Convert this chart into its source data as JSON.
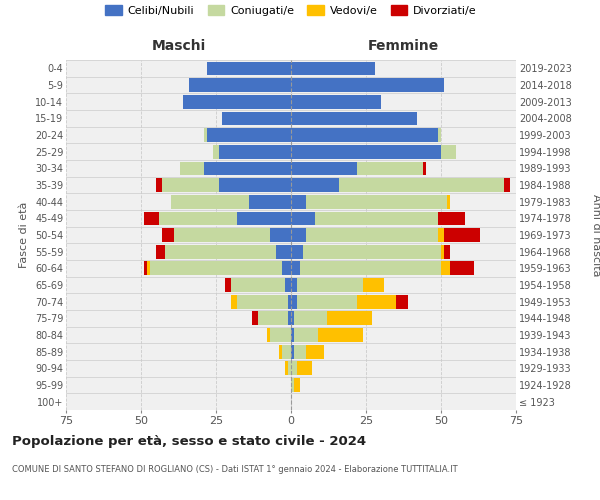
{
  "age_groups": [
    "100+",
    "95-99",
    "90-94",
    "85-89",
    "80-84",
    "75-79",
    "70-74",
    "65-69",
    "60-64",
    "55-59",
    "50-54",
    "45-49",
    "40-44",
    "35-39",
    "30-34",
    "25-29",
    "20-24",
    "15-19",
    "10-14",
    "5-9",
    "0-4"
  ],
  "birth_years": [
    "≤ 1923",
    "1924-1928",
    "1929-1933",
    "1934-1938",
    "1939-1943",
    "1944-1948",
    "1949-1953",
    "1954-1958",
    "1959-1963",
    "1964-1968",
    "1969-1973",
    "1974-1978",
    "1979-1983",
    "1984-1988",
    "1989-1993",
    "1994-1998",
    "1999-2003",
    "2004-2008",
    "2009-2013",
    "2014-2018",
    "2019-2023"
  ],
  "colors": {
    "celibi": "#4472c4",
    "coniugati": "#c5d9a0",
    "vedovi": "#ffc000",
    "divorziati": "#cc0000"
  },
  "males": {
    "celibi": [
      0,
      0,
      0,
      0,
      0,
      1,
      1,
      2,
      3,
      5,
      7,
      18,
      14,
      24,
      29,
      24,
      28,
      23,
      36,
      34,
      28
    ],
    "coniugati": [
      0,
      0,
      1,
      3,
      7,
      10,
      17,
      18,
      44,
      37,
      32,
      26,
      26,
      19,
      8,
      2,
      1,
      0,
      0,
      0,
      0
    ],
    "vedovi": [
      0,
      0,
      1,
      1,
      1,
      0,
      2,
      0,
      1,
      0,
      0,
      0,
      0,
      0,
      0,
      0,
      0,
      0,
      0,
      0,
      0
    ],
    "divorziati": [
      0,
      0,
      0,
      0,
      0,
      2,
      0,
      2,
      1,
      3,
      4,
      5,
      0,
      2,
      0,
      0,
      0,
      0,
      0,
      0,
      0
    ]
  },
  "females": {
    "celibi": [
      0,
      0,
      0,
      1,
      1,
      1,
      2,
      2,
      3,
      4,
      5,
      8,
      5,
      16,
      22,
      50,
      49,
      42,
      30,
      51,
      28
    ],
    "coniugati": [
      0,
      1,
      2,
      4,
      8,
      11,
      20,
      22,
      47,
      46,
      44,
      41,
      47,
      55,
      22,
      5,
      1,
      0,
      0,
      0,
      0
    ],
    "vedovi": [
      0,
      2,
      5,
      6,
      15,
      15,
      13,
      7,
      3,
      1,
      2,
      0,
      1,
      0,
      0,
      0,
      0,
      0,
      0,
      0,
      0
    ],
    "divorziati": [
      0,
      0,
      0,
      0,
      0,
      0,
      4,
      0,
      8,
      2,
      12,
      9,
      0,
      2,
      1,
      0,
      0,
      0,
      0,
      0,
      0
    ]
  },
  "title": "Popolazione per età, sesso e stato civile - 2024",
  "subtitle": "COMUNE DI SANTO STEFANO DI ROGLIANO (CS) - Dati ISTAT 1° gennaio 2024 - Elaborazione TUTTITALIA.IT",
  "xlabel_left": "Maschi",
  "xlabel_right": "Femmine",
  "ylabel_left": "Fasce di età",
  "ylabel_right": "Anni di nascita",
  "xlim": 75,
  "background_color": "#ffffff",
  "grid_color": "#cccccc",
  "legend_labels": [
    "Celibi/Nubili",
    "Coniugati/e",
    "Vedovi/e",
    "Divorziati/e"
  ]
}
